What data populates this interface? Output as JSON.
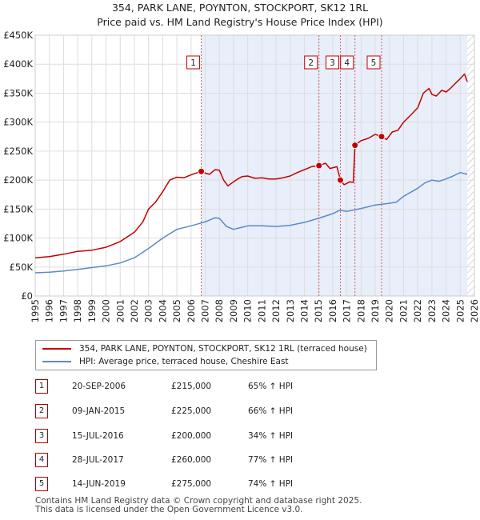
{
  "title_line1": "354, PARK LANE, POYNTON, STOCKPORT, SK12 1RL",
  "title_line2": "Price paid vs. HM Land Registry's House Price Index (HPI)",
  "colors": {
    "property": "#c00000",
    "hpi": "#5b8ac6",
    "shade": "#e8eefa",
    "marker_border": "#c00000",
    "grid": "#dddddd"
  },
  "chart_data": {
    "type": "line",
    "title": "Price paid vs. HM Land Registry's House Price Index (HPI)",
    "xlabel": "",
    "ylabel": "",
    "xlim": [
      1995,
      2026
    ],
    "ylim": [
      0,
      450000
    ],
    "x_ticks": [
      "1995",
      "1996",
      "1997",
      "1998",
      "1999",
      "2000",
      "2001",
      "2002",
      "2003",
      "2004",
      "2005",
      "2006",
      "2007",
      "2008",
      "2009",
      "2010",
      "2011",
      "2012",
      "2013",
      "2014",
      "2015",
      "2016",
      "2017",
      "2018",
      "2019",
      "2020",
      "2021",
      "2022",
      "2023",
      "2024",
      "2025",
      "2026"
    ],
    "y_ticks": [
      {
        "value": 0,
        "label": "£0"
      },
      {
        "value": 50000,
        "label": "£50K"
      },
      {
        "value": 100000,
        "label": "£100K"
      },
      {
        "value": 150000,
        "label": "£150K"
      },
      {
        "value": 200000,
        "label": "£200K"
      },
      {
        "value": 250000,
        "label": "£250K"
      },
      {
        "value": 300000,
        "label": "£300K"
      },
      {
        "value": 350000,
        "label": "£350K"
      },
      {
        "value": 400000,
        "label": "£400K"
      },
      {
        "value": 450000,
        "label": "£450K"
      }
    ],
    "grid": true,
    "shaded_period": [
      2006.72,
      2025.5
    ],
    "future_hatch_start": 2025.5,
    "series": [
      {
        "name": "354, PARK LANE, POYNTON, STOCKPORT, SK12 1RL (terraced house)",
        "color": "#c00000",
        "x": [
          1995,
          1996,
          1997,
          1998,
          1999,
          2000,
          2001,
          2002,
          2002.6,
          2003,
          2003.5,
          2004,
          2004.5,
          2005,
          2005.5,
          2006,
          2006.72,
          2007,
          2007.3,
          2007.7,
          2008,
          2008.3,
          2008.6,
          2009,
          2009.3,
          2009.6,
          2010,
          2010.5,
          2011,
          2011.5,
          2012,
          2012.5,
          2013,
          2013.5,
          2014,
          2014.5,
          2015.03,
          2015.5,
          2015.8,
          2016.3,
          2016.54,
          2016.8,
          2017.2,
          2017.45,
          2017.57,
          2018,
          2018.5,
          2019,
          2019.45,
          2019.8,
          2020.2,
          2020.6,
          2021,
          2021.5,
          2022,
          2022.4,
          2022.8,
          2023,
          2023.3,
          2023.7,
          2024,
          2024.3,
          2024.7,
          2025,
          2025.3,
          2025.5
        ],
        "y": [
          66000,
          68000,
          72000,
          77000,
          79000,
          84000,
          94000,
          110000,
          128000,
          150000,
          162000,
          180000,
          200000,
          205000,
          204000,
          209000,
          215000,
          212000,
          210000,
          218000,
          217000,
          200000,
          190000,
          197000,
          202000,
          206000,
          207000,
          203000,
          204000,
          202000,
          202000,
          204000,
          207000,
          213000,
          218000,
          223000,
          225000,
          229000,
          220000,
          223000,
          200000,
          192000,
          197000,
          196000,
          260000,
          268000,
          272000,
          279000,
          275000,
          270000,
          283000,
          286000,
          300000,
          312000,
          325000,
          350000,
          358000,
          348000,
          345000,
          355000,
          352000,
          358000,
          368000,
          375000,
          383000,
          370000
        ]
      },
      {
        "name": "HPI: Average price, terraced house, Cheshire East",
        "color": "#5b8ac6",
        "x": [
          1995,
          1996,
          1997,
          1998,
          1999,
          2000,
          2001,
          2002,
          2003,
          2004,
          2005,
          2006,
          2007,
          2007.7,
          2008,
          2008.5,
          2009,
          2009.5,
          2010,
          2011,
          2012,
          2013,
          2014,
          2015,
          2016,
          2016.5,
          2017,
          2018,
          2019,
          2020,
          2020.5,
          2021,
          2022,
          2022.5,
          2023,
          2023.5,
          2024,
          2024.5,
          2025,
          2025.5
        ],
        "y": [
          40000,
          41000,
          43000,
          46000,
          49000,
          52000,
          57000,
          66000,
          82000,
          100000,
          115000,
          121000,
          128000,
          135000,
          134000,
          120000,
          115000,
          118000,
          121000,
          121000,
          120000,
          122000,
          127000,
          134000,
          142000,
          148000,
          146000,
          151000,
          157000,
          160000,
          162000,
          172000,
          186000,
          195000,
          200000,
          198000,
          202000,
          207000,
          213000,
          210000
        ]
      }
    ],
    "transactions": [
      {
        "num": "1",
        "x": 2006.72,
        "y": 215000
      },
      {
        "num": "2",
        "x": 2015.03,
        "y": 225000
      },
      {
        "num": "3",
        "x": 2016.54,
        "y": 200000
      },
      {
        "num": "4",
        "x": 2017.57,
        "y": 260000
      },
      {
        "num": "5",
        "x": 2019.45,
        "y": 275000
      }
    ]
  },
  "legend": {
    "property_label": "354, PARK LANE, POYNTON, STOCKPORT, SK12 1RL (terraced house)",
    "hpi_label": "HPI: Average price, terraced house, Cheshire East"
  },
  "table": [
    {
      "num": "1",
      "date": "20-SEP-2006",
      "price": "£215,000",
      "hpi": "65% ↑ HPI"
    },
    {
      "num": "2",
      "date": "09-JAN-2015",
      "price": "£225,000",
      "hpi": "66% ↑ HPI"
    },
    {
      "num": "3",
      "date": "15-JUL-2016",
      "price": "£200,000",
      "hpi": "34% ↑ HPI"
    },
    {
      "num": "4",
      "date": "28-JUL-2017",
      "price": "£260,000",
      "hpi": "77% ↑ HPI"
    },
    {
      "num": "5",
      "date": "14-JUN-2019",
      "price": "£275,000",
      "hpi": "74% ↑ HPI"
    }
  ],
  "footer_line1": "Contains HM Land Registry data © Crown copyright and database right 2025.",
  "footer_line2": "This data is licensed under the Open Government Licence v3.0."
}
